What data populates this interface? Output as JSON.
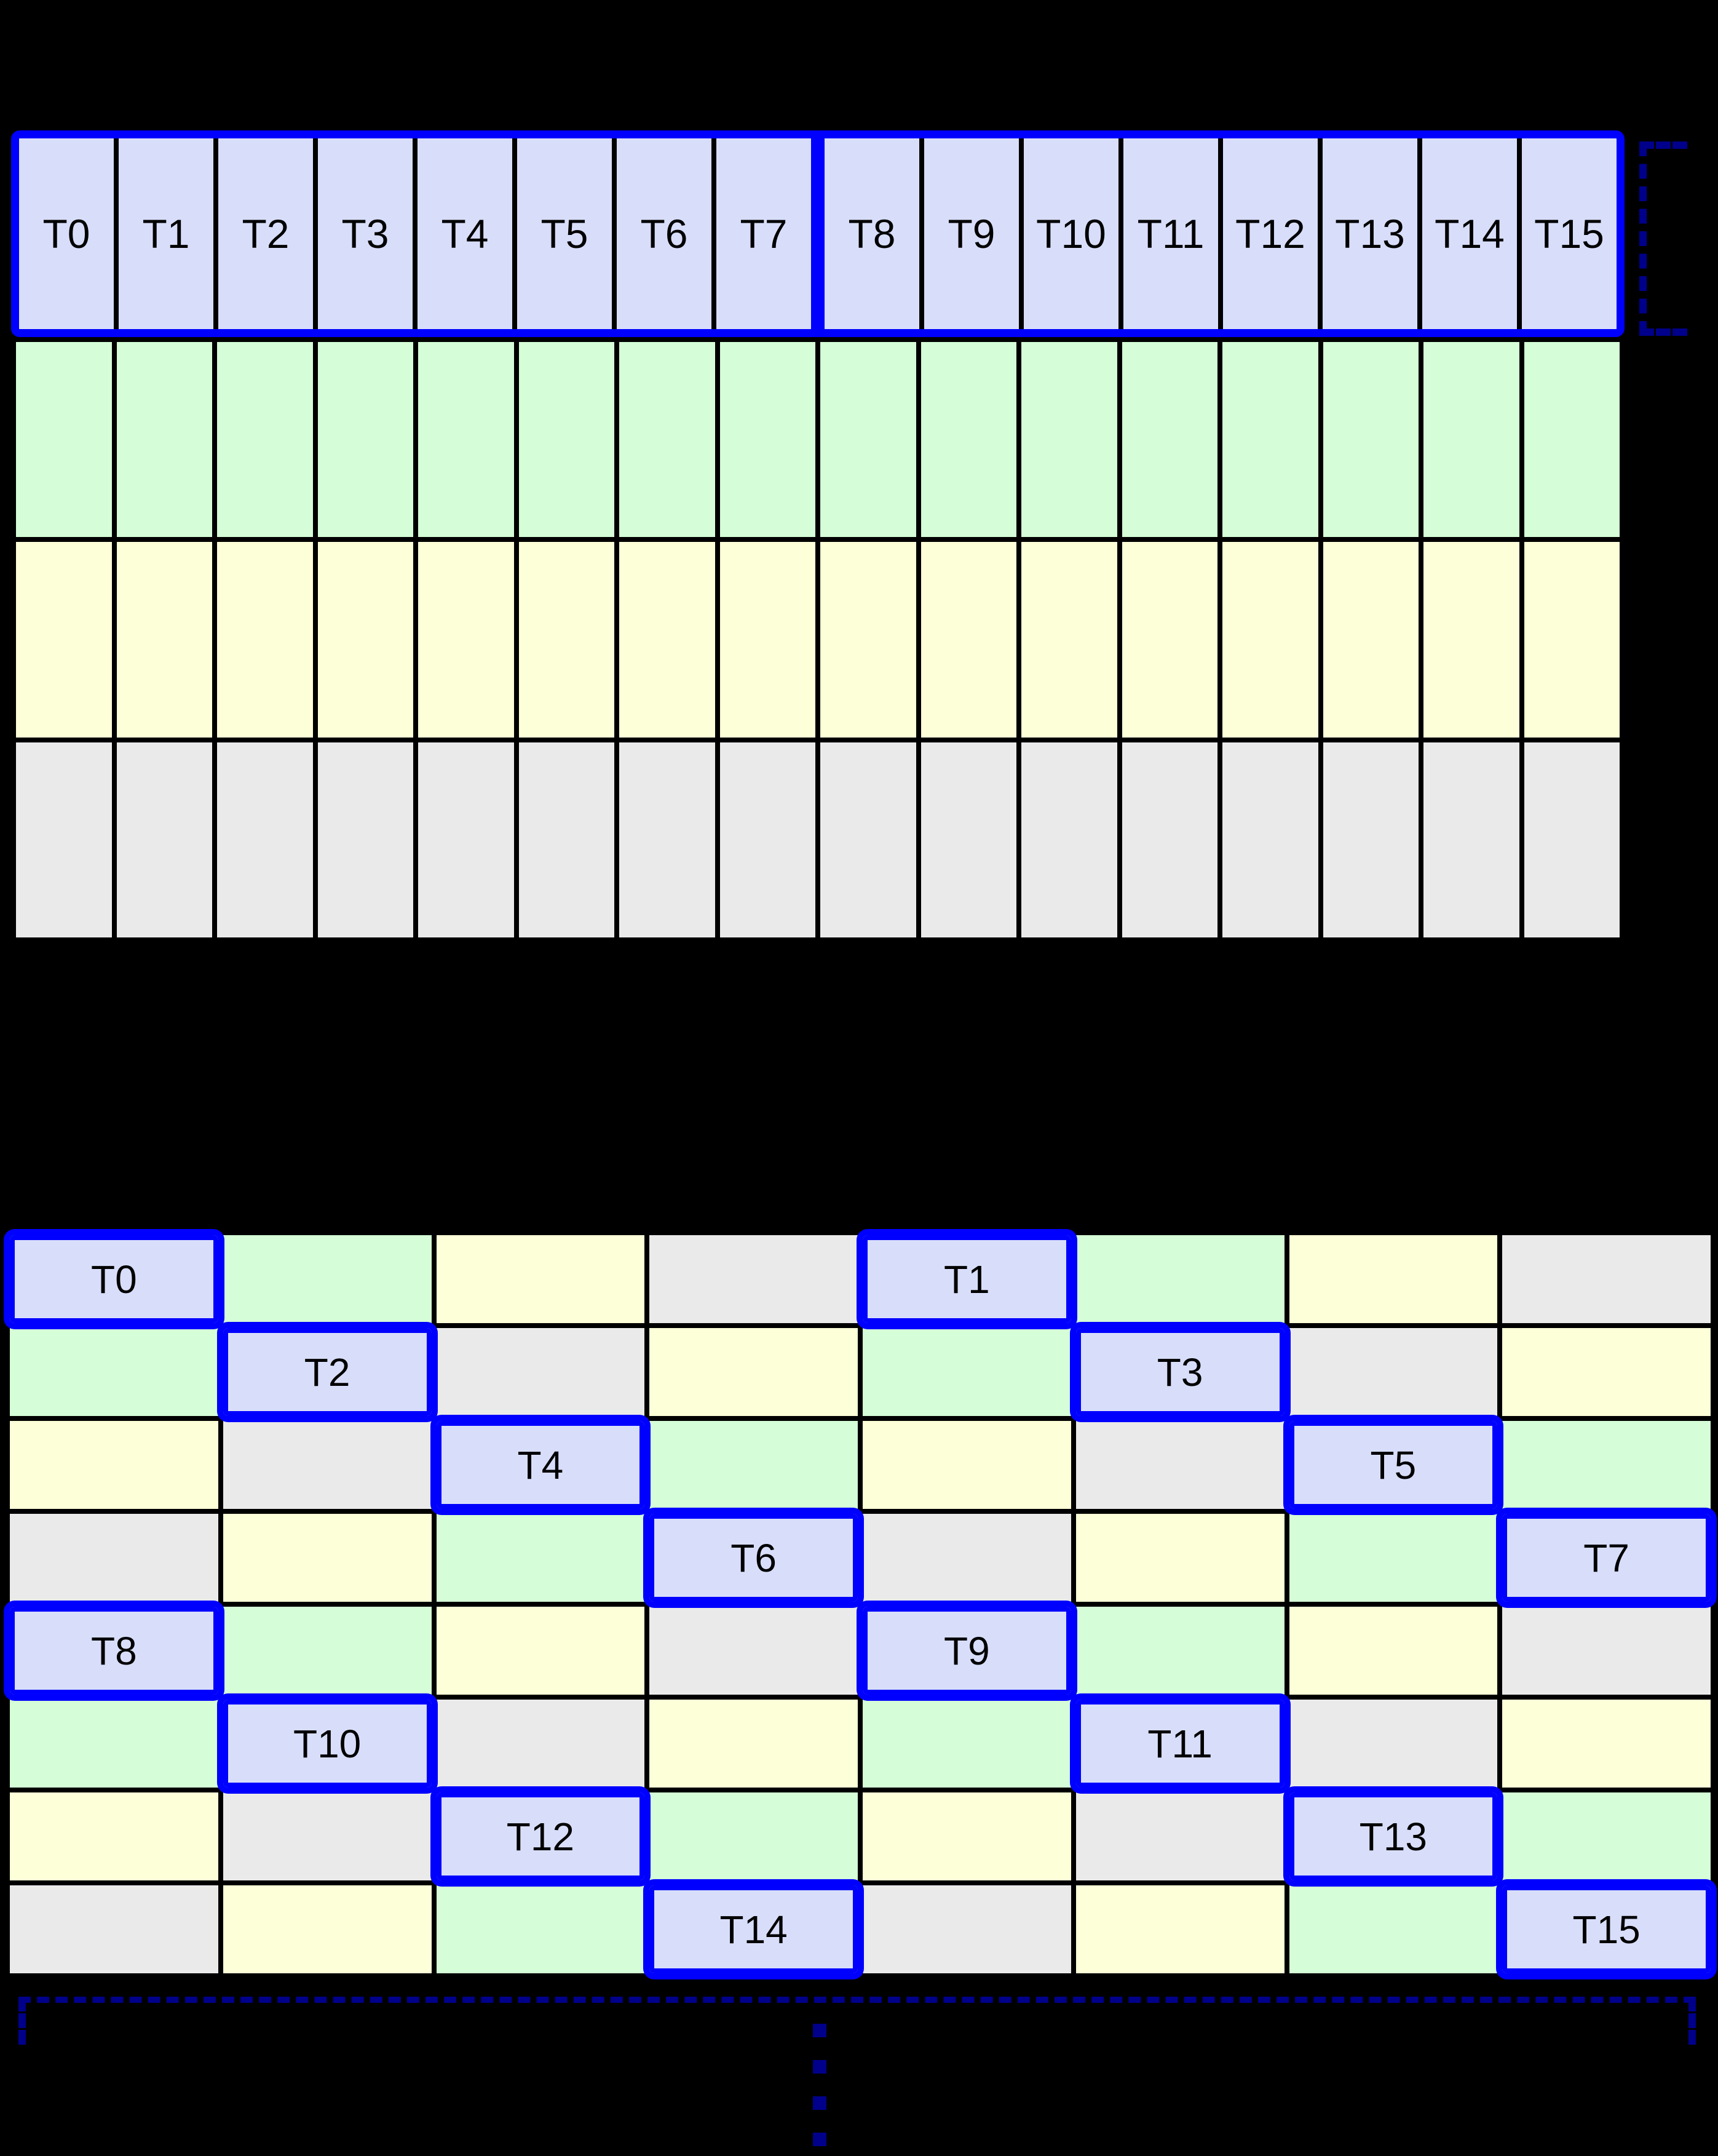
{
  "colors": {
    "background": "#000000",
    "grid_line": "#000000",
    "label": "#000000",
    "highlight": "#0000ff",
    "bracket": "#00008b",
    "cell": {
      "thread": "#d8defa",
      "green": "#d5fdd7",
      "yellow": "#fdffd8",
      "gray": "#eaeaea"
    }
  },
  "top_grid": {
    "header_cells": [
      {
        "label": "T0",
        "color": "thread"
      },
      {
        "label": "T1",
        "color": "thread"
      },
      {
        "label": "T2",
        "color": "thread"
      },
      {
        "label": "T3",
        "color": "thread"
      },
      {
        "label": "T4",
        "color": "thread"
      },
      {
        "label": "T5",
        "color": "thread"
      },
      {
        "label": "T6",
        "color": "thread"
      },
      {
        "label": "T7",
        "color": "thread"
      },
      {
        "label": "T8",
        "color": "thread"
      },
      {
        "label": "T9",
        "color": "thread"
      },
      {
        "label": "T10",
        "color": "thread"
      },
      {
        "label": "T11",
        "color": "thread"
      },
      {
        "label": "T12",
        "color": "thread"
      },
      {
        "label": "T13",
        "color": "thread"
      },
      {
        "label": "T14",
        "color": "thread"
      },
      {
        "label": "T15",
        "color": "thread"
      }
    ],
    "split_after_column": 8,
    "memory_rows": [
      {
        "color": "green"
      },
      {
        "color": "yellow"
      },
      {
        "color": "gray"
      }
    ]
  },
  "bottom_grid": {
    "rows": [
      {
        "cells": [
          {
            "color": "thread",
            "label": "T0"
          },
          {
            "color": "green",
            "label": ""
          },
          {
            "color": "yellow",
            "label": ""
          },
          {
            "color": "gray",
            "label": ""
          },
          {
            "color": "thread",
            "label": "T1"
          },
          {
            "color": "green",
            "label": ""
          },
          {
            "color": "yellow",
            "label": ""
          },
          {
            "color": "gray",
            "label": ""
          }
        ]
      },
      {
        "cells": [
          {
            "color": "green",
            "label": ""
          },
          {
            "color": "thread",
            "label": "T2"
          },
          {
            "color": "gray",
            "label": ""
          },
          {
            "color": "yellow",
            "label": ""
          },
          {
            "color": "green",
            "label": ""
          },
          {
            "color": "thread",
            "label": "T3"
          },
          {
            "color": "gray",
            "label": ""
          },
          {
            "color": "yellow",
            "label": ""
          }
        ]
      },
      {
        "cells": [
          {
            "color": "yellow",
            "label": ""
          },
          {
            "color": "gray",
            "label": ""
          },
          {
            "color": "thread",
            "label": "T4"
          },
          {
            "color": "green",
            "label": ""
          },
          {
            "color": "yellow",
            "label": ""
          },
          {
            "color": "gray",
            "label": ""
          },
          {
            "color": "thread",
            "label": "T5"
          },
          {
            "color": "green",
            "label": ""
          }
        ]
      },
      {
        "cells": [
          {
            "color": "gray",
            "label": ""
          },
          {
            "color": "yellow",
            "label": ""
          },
          {
            "color": "green",
            "label": ""
          },
          {
            "color": "thread",
            "label": "T6"
          },
          {
            "color": "gray",
            "label": ""
          },
          {
            "color": "yellow",
            "label": ""
          },
          {
            "color": "green",
            "label": ""
          },
          {
            "color": "thread",
            "label": "T7"
          }
        ]
      },
      {
        "cells": [
          {
            "color": "thread",
            "label": "T8"
          },
          {
            "color": "green",
            "label": ""
          },
          {
            "color": "yellow",
            "label": ""
          },
          {
            "color": "gray",
            "label": ""
          },
          {
            "color": "thread",
            "label": "T9"
          },
          {
            "color": "green",
            "label": ""
          },
          {
            "color": "yellow",
            "label": ""
          },
          {
            "color": "gray",
            "label": ""
          }
        ]
      },
      {
        "cells": [
          {
            "color": "green",
            "label": ""
          },
          {
            "color": "thread",
            "label": "T10"
          },
          {
            "color": "gray",
            "label": ""
          },
          {
            "color": "yellow",
            "label": ""
          },
          {
            "color": "green",
            "label": ""
          },
          {
            "color": "thread",
            "label": "T11"
          },
          {
            "color": "gray",
            "label": ""
          },
          {
            "color": "yellow",
            "label": ""
          }
        ]
      },
      {
        "cells": [
          {
            "color": "yellow",
            "label": ""
          },
          {
            "color": "gray",
            "label": ""
          },
          {
            "color": "thread",
            "label": "T12"
          },
          {
            "color": "green",
            "label": ""
          },
          {
            "color": "yellow",
            "label": ""
          },
          {
            "color": "gray",
            "label": ""
          },
          {
            "color": "thread",
            "label": "T13"
          },
          {
            "color": "green",
            "label": ""
          }
        ]
      },
      {
        "cells": [
          {
            "color": "gray",
            "label": ""
          },
          {
            "color": "yellow",
            "label": ""
          },
          {
            "color": "green",
            "label": ""
          },
          {
            "color": "thread",
            "label": "T14"
          },
          {
            "color": "gray",
            "label": ""
          },
          {
            "color": "yellow",
            "label": ""
          },
          {
            "color": "green",
            "label": ""
          },
          {
            "color": "thread",
            "label": "T15"
          }
        ]
      }
    ]
  },
  "annotations": {
    "right_bracket_icon": "dashed-row-bracket",
    "bottom_bracket_icon": "dashed-width-bracket",
    "continuation_dots": 4
  }
}
